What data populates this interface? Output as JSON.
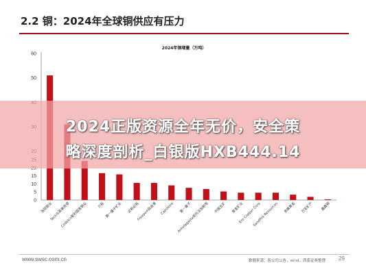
{
  "slide": {
    "title": "2.2  铜：2024年全球铜供应有压力",
    "footer_url": "www.swsc.com.cn",
    "footer_source": "数据来源：各公司公告，wind，西南证券整理",
    "page_number": "29"
  },
  "overlay": {
    "line1": "2024正版资源全年无价，安全策",
    "line2": "略深度剖析_白银版HXB444.14"
  },
  "colors": {
    "bar": "#c0101a",
    "title_rule": "#9a0d14"
  },
  "chart_data": {
    "type": "bar",
    "title": "2024年铜增量（万吨）",
    "xlabel": "",
    "ylabel": "",
    "ylim": [
      0,
      60
    ],
    "grid": false,
    "y_ticks_top": [
      "60",
      "50",
      "40",
      "30",
      "20"
    ],
    "y_ticks_bottom": [
      "25",
      "20",
      "15",
      "10",
      "5",
      "0"
    ],
    "categories": [
      "洛阳钼业",
      "Teck与英美资源",
      "Codelco智利国家铜业",
      "力拓",
      "第一量子矿业",
      "必和必拓",
      "Freeport自由港",
      "Capstone",
      "第一量子",
      "Antofagasta安托法加斯塔",
      "中国五矿",
      "紫金矿业",
      "Ero Copper Corp",
      "Sandfire Resources",
      "赤峰黄金",
      "万宝矿产",
      "鑫鑫铜"
    ],
    "values": [
      51,
      31,
      16,
      11,
      10.5,
      7,
      7,
      6,
      5,
      4.5,
      3.5,
      3,
      3,
      3,
      2.2,
      1.3,
      0.3
    ]
  }
}
